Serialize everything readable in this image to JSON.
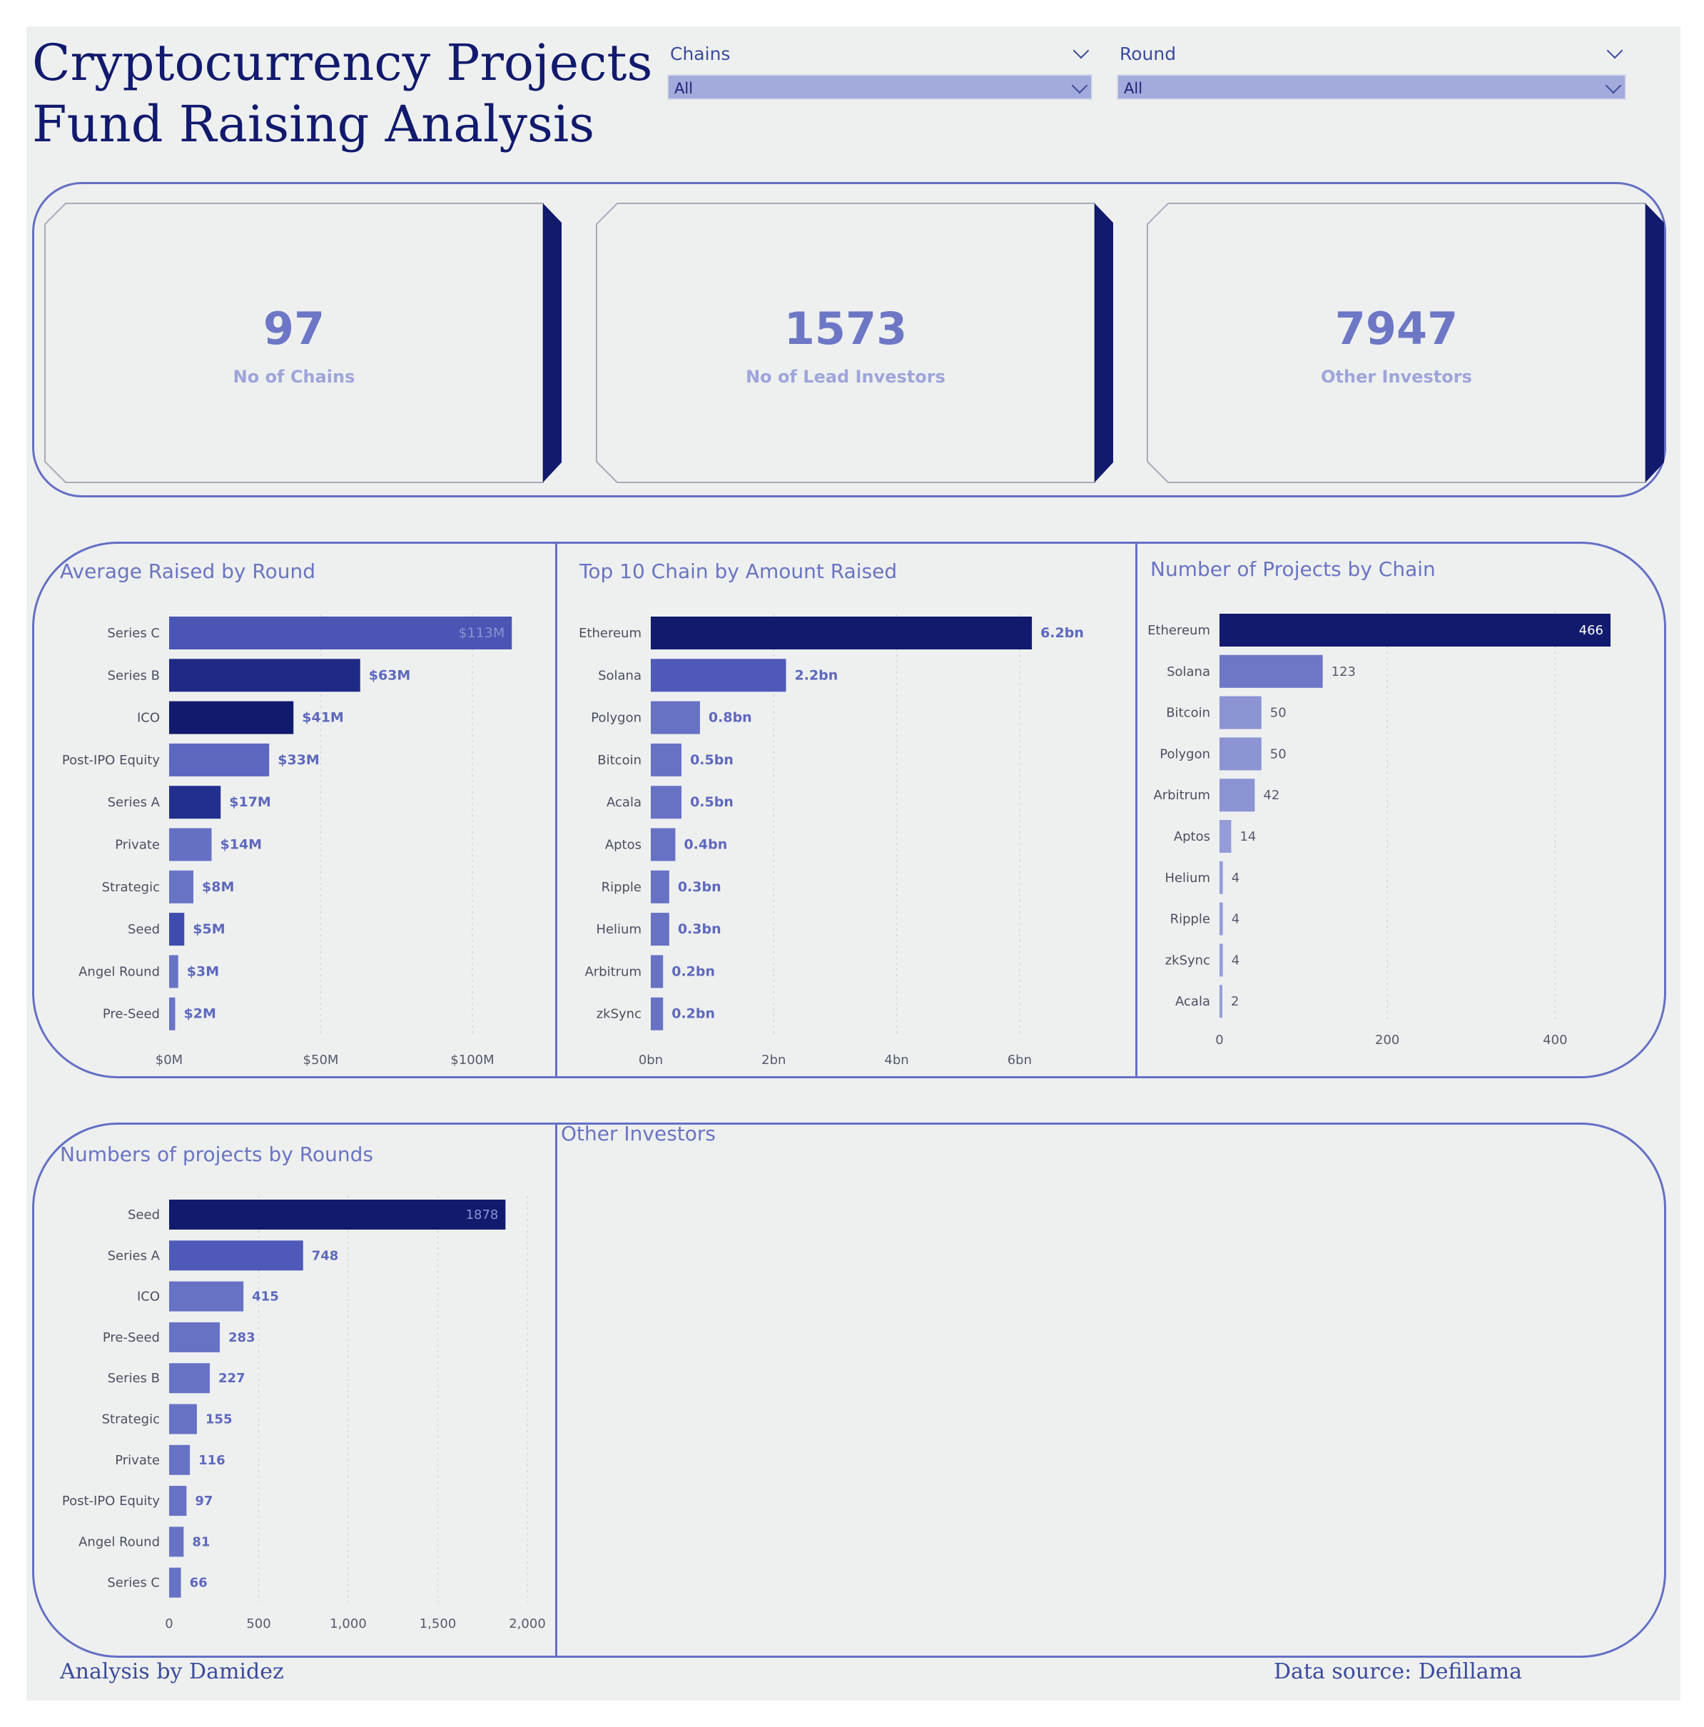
{
  "title_line1": "Cryptocurrency Projects",
  "title_line2": "Fund Raising Analysis",
  "slicers": [
    {
      "label": "Chains",
      "value": "All"
    },
    {
      "label": "Round",
      "value": "All"
    }
  ],
  "kpis": [
    {
      "value": "97",
      "label": "No of Chains"
    },
    {
      "value": "1573",
      "label": "No of Lead Investors"
    },
    {
      "value": "7947",
      "label": "Other Investors"
    }
  ],
  "other_investors_title": "Other Investors",
  "footer": {
    "left": "Analysis by Damidez",
    "right": "Data source: Defillama"
  },
  "chart_data": [
    {
      "type": "bar",
      "title": "Average Raised by Round",
      "orientation": "horizontal",
      "categories": [
        "Series C",
        "Series B",
        "ICO",
        "Post-IPO Equity",
        "Series A",
        "Private",
        "Strategic",
        "Seed",
        "Angel Round",
        "Pre-Seed"
      ],
      "values": [
        113,
        63,
        41,
        33,
        17,
        14,
        8,
        5,
        3,
        2
      ],
      "labels": [
        "$113M",
        "$63M",
        "$41M",
        "$33M",
        "$17M",
        "$14M",
        "$8M",
        "$5M",
        "$3M",
        "$2M"
      ],
      "colors": [
        "#4a55b4",
        "#1e2a86",
        "#111a6d",
        "#5c67bf",
        "#232f8d",
        "#6670c3",
        "#6a74c5",
        "#3f4bad",
        "#6a74c5",
        "#6a74c5"
      ],
      "xticks": [
        "$0M",
        "$50M",
        "$100M"
      ],
      "xtick_values": [
        0,
        50,
        100
      ],
      "xlim": [
        0,
        120
      ]
    },
    {
      "type": "bar",
      "title": "Top 10 Chain by Amount Raised",
      "orientation": "horizontal",
      "categories": [
        "Ethereum",
        "Solana",
        "Polygon",
        "Bitcoin",
        "Acala",
        "Aptos",
        "Ripple",
        "Helium",
        "Arbitrum",
        "zkSync"
      ],
      "values": [
        6.2,
        2.2,
        0.8,
        0.5,
        0.5,
        0.4,
        0.3,
        0.3,
        0.2,
        0.2
      ],
      "labels": [
        "6.2bn",
        "2.2bn",
        "0.8bn",
        "0.5bn",
        "0.5bn",
        "0.4bn",
        "0.3bn",
        "0.3bn",
        "0.2bn",
        "0.2bn"
      ],
      "colors": [
        "#111a6d",
        "#4e59b8",
        "#6872c4",
        "#6872c4",
        "#6872c4",
        "#6872c4",
        "#6872c4",
        "#6872c4",
        "#6872c4",
        "#6872c4"
      ],
      "xticks": [
        "0bn",
        "2bn",
        "4bn",
        "6bn"
      ],
      "xtick_values": [
        0,
        2,
        4,
        6
      ],
      "xlim": [
        0,
        7
      ]
    },
    {
      "type": "bar",
      "title": "Number of Projects by Chain",
      "orientation": "horizontal",
      "categories": [
        "Ethereum",
        "Solana",
        "Bitcoin",
        "Polygon",
        "Arbitrum",
        "Aptos",
        "Helium",
        "Ripple",
        "zkSync",
        "Acala"
      ],
      "values": [
        466,
        123,
        50,
        50,
        42,
        14,
        4,
        4,
        4,
        2
      ],
      "labels": [
        "466",
        "123",
        "50",
        "50",
        "42",
        "14",
        "4",
        "4",
        "4",
        "2"
      ],
      "colors": [
        "#111a6d",
        "#6d77c6",
        "#8c94d4",
        "#8c94d4",
        "#8c94d4",
        "#959cd8",
        "#959cd8",
        "#959cd8",
        "#959cd8",
        "#959cd8"
      ],
      "xticks": [
        "0",
        "200",
        "400"
      ],
      "xtick_values": [
        0,
        200,
        400
      ],
      "xlim": [
        0,
        466
      ]
    },
    {
      "type": "bar",
      "title": "Numbers of projects by Rounds",
      "orientation": "horizontal",
      "categories": [
        "Seed",
        "Series A",
        "ICO",
        "Pre-Seed",
        "Series B",
        "Strategic",
        "Private",
        "Post-IPO Equity",
        "Angel Round",
        "Series C"
      ],
      "values": [
        1878,
        748,
        415,
        283,
        227,
        155,
        116,
        97,
        81,
        66
      ],
      "labels": [
        "1878",
        "748",
        "415",
        "283",
        "227",
        "155",
        "116",
        "97",
        "81",
        "66"
      ],
      "colors": [
        "#111a6d",
        "#4e59b8",
        "#6872c4",
        "#6872c4",
        "#6872c4",
        "#6872c4",
        "#6872c4",
        "#6872c4",
        "#6872c4",
        "#6872c4"
      ],
      "xticks": [
        "0",
        "500",
        "1,000",
        "1,500",
        "2,000"
      ],
      "xtick_values": [
        0,
        500,
        1000,
        1500,
        2000
      ],
      "xlim": [
        0,
        2000
      ]
    }
  ]
}
